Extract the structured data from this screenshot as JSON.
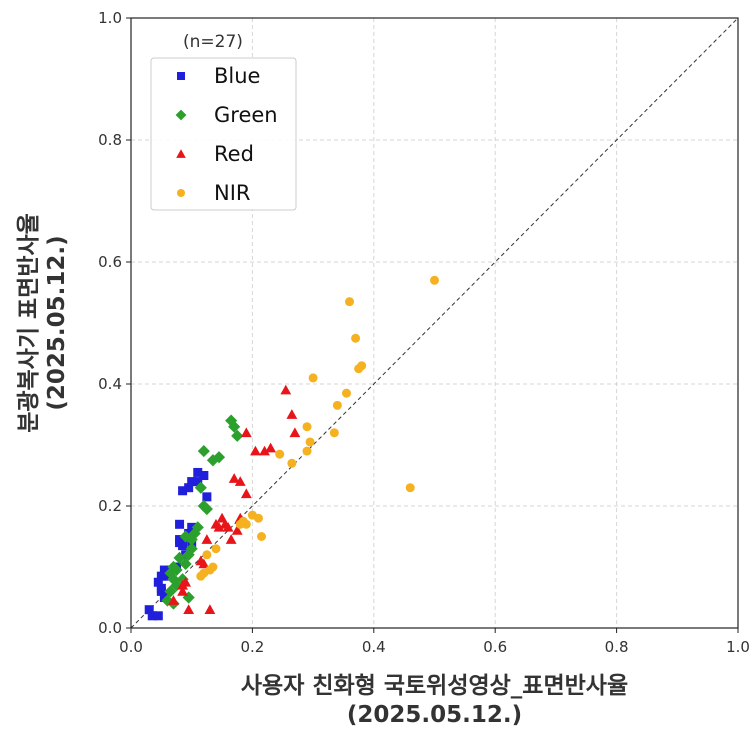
{
  "chart_data": {
    "type": "scatter",
    "title": "",
    "xlabel": [
      "사용자 친화형 국토위성영상_표면반사율",
      "(2025.05.12.)"
    ],
    "ylabel": [
      "분광복사기 표면반사율",
      "(2025.05.12.)"
    ],
    "xlim": [
      0.0,
      1.0
    ],
    "ylim": [
      0.0,
      1.0
    ],
    "xticks": [
      "0.0",
      "0.2",
      "0.4",
      "0.6",
      "0.8",
      "1.0"
    ],
    "yticks": [
      "0.0",
      "0.2",
      "0.4",
      "0.6",
      "0.8",
      "1.0"
    ],
    "grid": true,
    "identity_line": true,
    "annotation": "(n=27)",
    "legend_position": "top-left",
    "series": [
      {
        "name": "Blue",
        "marker": "square",
        "color": "#1f1fdc",
        "points": [
          [
            0.03,
            0.03
          ],
          [
            0.035,
            0.02
          ],
          [
            0.045,
            0.02
          ],
          [
            0.05,
            0.065
          ],
          [
            0.045,
            0.075
          ],
          [
            0.055,
            0.095
          ],
          [
            0.05,
            0.085
          ],
          [
            0.05,
            0.06
          ],
          [
            0.055,
            0.05
          ],
          [
            0.06,
            0.085
          ],
          [
            0.065,
            0.095
          ],
          [
            0.08,
            0.14
          ],
          [
            0.08,
            0.145
          ],
          [
            0.085,
            0.135
          ],
          [
            0.08,
            0.17
          ],
          [
            0.095,
            0.155
          ],
          [
            0.085,
            0.225
          ],
          [
            0.095,
            0.23
          ],
          [
            0.1,
            0.24
          ],
          [
            0.11,
            0.24
          ],
          [
            0.11,
            0.255
          ],
          [
            0.12,
            0.25
          ],
          [
            0.125,
            0.215
          ],
          [
            0.1,
            0.165
          ],
          [
            0.1,
            0.14
          ],
          [
            0.09,
            0.12
          ],
          [
            0.075,
            0.1
          ]
        ]
      },
      {
        "name": "Green",
        "marker": "diamond",
        "color": "#2ca02c",
        "points": [
          [
            0.065,
            0.06
          ],
          [
            0.07,
            0.08
          ],
          [
            0.065,
            0.09
          ],
          [
            0.075,
            0.095
          ],
          [
            0.07,
            0.1
          ],
          [
            0.09,
            0.105
          ],
          [
            0.095,
            0.12
          ],
          [
            0.1,
            0.13
          ],
          [
            0.105,
            0.155
          ],
          [
            0.11,
            0.165
          ],
          [
            0.1,
            0.145
          ],
          [
            0.115,
            0.23
          ],
          [
            0.12,
            0.2
          ],
          [
            0.125,
            0.195
          ],
          [
            0.12,
            0.29
          ],
          [
            0.135,
            0.275
          ],
          [
            0.145,
            0.28
          ],
          [
            0.165,
            0.34
          ],
          [
            0.175,
            0.315
          ],
          [
            0.17,
            0.33
          ],
          [
            0.09,
            0.15
          ],
          [
            0.095,
            0.05
          ],
          [
            0.06,
            0.045
          ],
          [
            0.075,
            0.07
          ],
          [
            0.085,
            0.08
          ],
          [
            0.07,
            0.04
          ],
          [
            0.08,
            0.115
          ]
        ]
      },
      {
        "name": "Red",
        "marker": "triangle",
        "color": "#e8141a",
        "points": [
          [
            0.07,
            0.045
          ],
          [
            0.085,
            0.06
          ],
          [
            0.085,
            0.07
          ],
          [
            0.09,
            0.075
          ],
          [
            0.095,
            0.03
          ],
          [
            0.13,
            0.03
          ],
          [
            0.115,
            0.11
          ],
          [
            0.12,
            0.105
          ],
          [
            0.125,
            0.145
          ],
          [
            0.14,
            0.17
          ],
          [
            0.145,
            0.165
          ],
          [
            0.155,
            0.17
          ],
          [
            0.16,
            0.165
          ],
          [
            0.165,
            0.145
          ],
          [
            0.175,
            0.16
          ],
          [
            0.17,
            0.245
          ],
          [
            0.18,
            0.24
          ],
          [
            0.19,
            0.22
          ],
          [
            0.19,
            0.32
          ],
          [
            0.205,
            0.29
          ],
          [
            0.22,
            0.29
          ],
          [
            0.23,
            0.295
          ],
          [
            0.255,
            0.39
          ],
          [
            0.265,
            0.35
          ],
          [
            0.27,
            0.32
          ],
          [
            0.18,
            0.18
          ],
          [
            0.15,
            0.18
          ]
        ]
      },
      {
        "name": "NIR",
        "marker": "circle",
        "color": "#f5b120",
        "points": [
          [
            0.12,
            0.09
          ],
          [
            0.125,
            0.12
          ],
          [
            0.13,
            0.095
          ],
          [
            0.135,
            0.1
          ],
          [
            0.18,
            0.17
          ],
          [
            0.185,
            0.175
          ],
          [
            0.2,
            0.185
          ],
          [
            0.21,
            0.18
          ],
          [
            0.215,
            0.15
          ],
          [
            0.245,
            0.285
          ],
          [
            0.265,
            0.27
          ],
          [
            0.29,
            0.33
          ],
          [
            0.29,
            0.29
          ],
          [
            0.295,
            0.305
          ],
          [
            0.3,
            0.41
          ],
          [
            0.335,
            0.32
          ],
          [
            0.34,
            0.365
          ],
          [
            0.355,
            0.385
          ],
          [
            0.36,
            0.535
          ],
          [
            0.37,
            0.475
          ],
          [
            0.375,
            0.425
          ],
          [
            0.38,
            0.43
          ],
          [
            0.46,
            0.23
          ],
          [
            0.5,
            0.57
          ],
          [
            0.19,
            0.17
          ],
          [
            0.14,
            0.13
          ],
          [
            0.115,
            0.085
          ]
        ]
      }
    ]
  }
}
